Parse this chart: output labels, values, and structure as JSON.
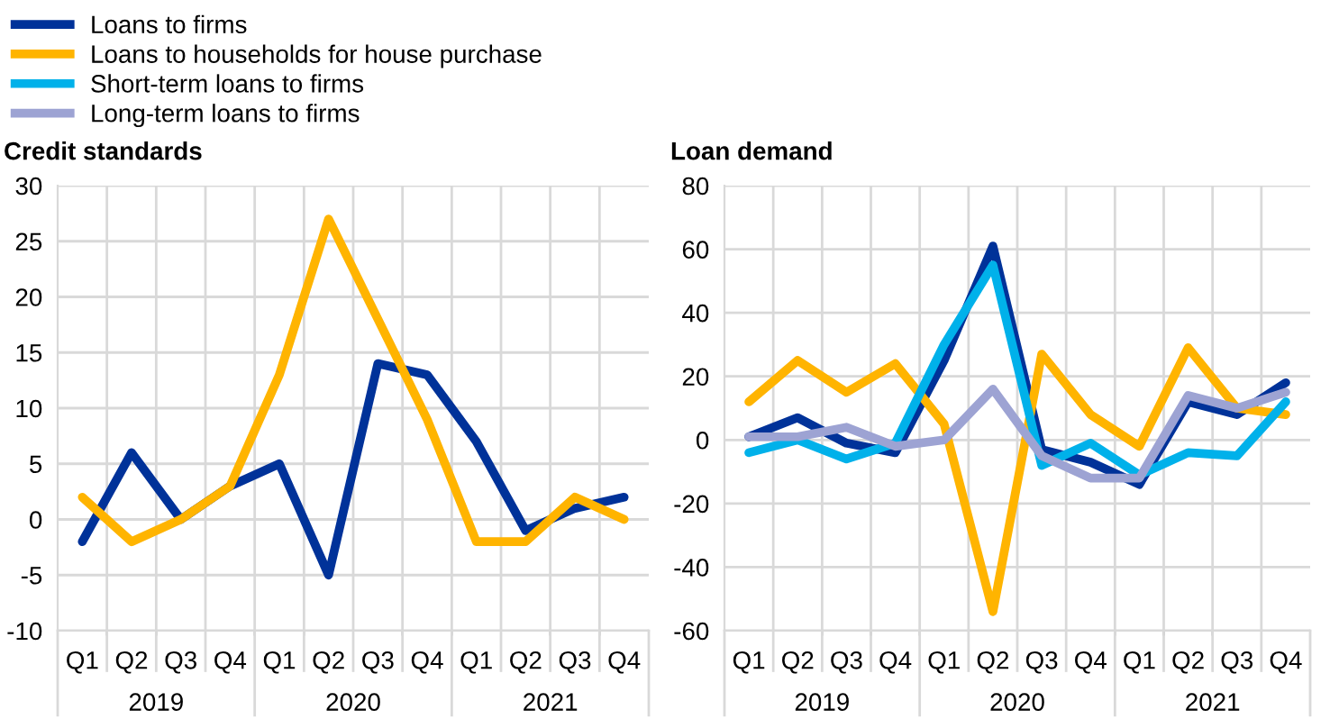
{
  "chart_data": [
    {
      "type": "line",
      "title": "Credit standards",
      "categories": [
        "Q1",
        "Q2",
        "Q3",
        "Q4",
        "Q1",
        "Q2",
        "Q3",
        "Q4",
        "Q1",
        "Q2",
        "Q3",
        "Q4"
      ],
      "annotations": [
        "2019",
        "2020",
        "2021"
      ],
      "series": [
        {
          "name": "Loans to firms",
          "color": "#003299",
          "values": [
            -2,
            6,
            0,
            3,
            5,
            -5,
            14,
            13,
            7,
            -1,
            1,
            2
          ]
        },
        {
          "name": "Loans to households for house purchase",
          "color": "#ffb400",
          "values": [
            2,
            -2,
            0,
            3,
            13,
            27,
            18,
            9,
            -2,
            -2,
            2,
            0
          ]
        }
      ],
      "ylim": [
        -10,
        30
      ],
      "yticks": [
        -10,
        -5,
        0,
        5,
        10,
        15,
        20,
        25,
        30
      ],
      "grid": true,
      "legend": "top left",
      "marker": "none",
      "line_style": "solid"
    },
    {
      "type": "line",
      "title": "Loan demand",
      "categories": [
        "Q1",
        "Q2",
        "Q3",
        "Q4",
        "Q1",
        "Q2",
        "Q3",
        "Q4",
        "Q1",
        "Q2",
        "Q3",
        "Q4"
      ],
      "annotations": [
        "2019",
        "2020",
        "2021"
      ],
      "series": [
        {
          "name": "Loans to firms",
          "color": "#003299",
          "values": [
            1,
            7,
            -1,
            -4,
            25,
            61,
            -3,
            -7,
            -14,
            12,
            8,
            18
          ]
        },
        {
          "name": "Loans to households for house purchase",
          "color": "#ffb400",
          "values": [
            12,
            25,
            15,
            24,
            5,
            -54,
            27,
            8,
            -2,
            29,
            10,
            8
          ]
        },
        {
          "name": "Short-term loans to firms",
          "color": "#00b1ea",
          "values": [
            -4,
            0,
            -6,
            -1,
            30,
            55,
            -8,
            -1,
            -11,
            -4,
            -5,
            12
          ]
        },
        {
          "name": "Long-term loans to firms",
          "color": "#9da3d3",
          "values": [
            1,
            1,
            4,
            -2,
            0,
            16,
            -5,
            -12,
            -12,
            14,
            10,
            15
          ]
        }
      ],
      "ylim": [
        -60,
        80
      ],
      "yticks": [
        -60,
        -40,
        -20,
        0,
        20,
        40,
        60,
        80
      ],
      "grid": true,
      "legend": "top left",
      "marker": "none",
      "line_style": "solid"
    }
  ]
}
